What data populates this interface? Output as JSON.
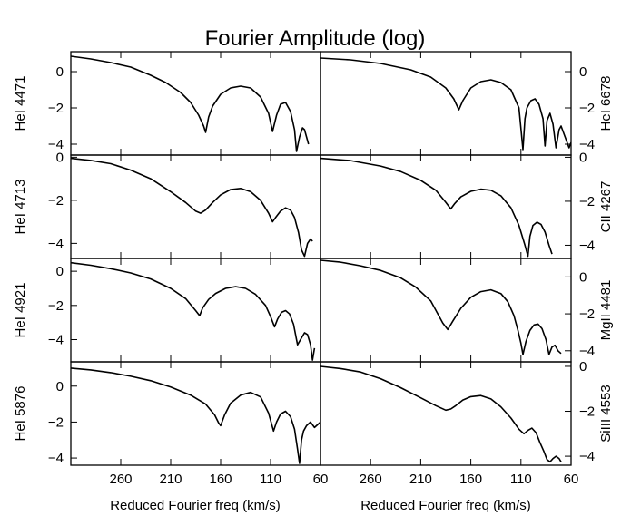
{
  "figure": {
    "title": "Fourier Amplitude (log)",
    "xlabel": "Reduced Fourier freq (km/s)",
    "line_color": "#000000",
    "background": "#ffffff"
  },
  "chart_data": [
    {
      "type": "line",
      "panel": "left-1",
      "ylabel": "HeI 4471",
      "ylabel_side": "left",
      "xlim": [
        310,
        60
      ],
      "ylim": [
        -4.6,
        1.1
      ],
      "x_reversed": true,
      "xticks": [
        260,
        210,
        160,
        110,
        60
      ],
      "xticklabels_shown": false,
      "yticks": [
        0,
        -2,
        -4
      ],
      "ytick_side": "left",
      "series": [
        {
          "values": {
            "x": [
              310,
              290,
              270,
              250,
              230,
              215,
              200,
              190,
              182,
              177,
              175,
              172,
              168,
              160,
              150,
              140,
              130,
              120,
              112,
              108,
              104,
              100,
              95,
              90,
              86,
              84,
              81,
              78,
              76,
              74,
              72
            ],
            "y": [
              0.85,
              0.7,
              0.5,
              0.25,
              -0.2,
              -0.6,
              -1.15,
              -1.7,
              -2.4,
              -3.0,
              -3.35,
              -2.5,
              -1.9,
              -1.25,
              -0.9,
              -0.8,
              -0.9,
              -1.4,
              -2.3,
              -3.3,
              -2.4,
              -1.8,
              -1.7,
              -2.2,
              -3.2,
              -4.4,
              -3.6,
              -3.1,
              -3.2,
              -3.6,
              -4.0
            ]
          }
        }
      ]
    },
    {
      "type": "line",
      "panel": "right-1",
      "ylabel": "HeI 6678",
      "ylabel_side": "right",
      "xlim": [
        310,
        60
      ],
      "ylim": [
        -4.6,
        1.1
      ],
      "x_reversed": true,
      "xticks": [
        260,
        210,
        160,
        110,
        60
      ],
      "xticklabels_shown": false,
      "yticks": [
        0,
        -2,
        -4
      ],
      "ytick_side": "right",
      "series": [
        {
          "values": {
            "x": [
              310,
              280,
              250,
              220,
              200,
              185,
              177,
              172,
              168,
              160,
              150,
              140,
              130,
              120,
              112,
              108,
              106,
              104,
              100,
              96,
              92,
              88,
              86,
              84,
              81,
              78,
              75,
              72,
              70,
              66,
              62,
              60
            ],
            "y": [
              0.75,
              0.65,
              0.45,
              0.1,
              -0.3,
              -0.9,
              -1.5,
              -2.1,
              -1.6,
              -0.9,
              -0.55,
              -0.45,
              -0.6,
              -1.0,
              -2.0,
              -4.3,
              -2.6,
              -2.0,
              -1.6,
              -1.5,
              -1.8,
              -2.6,
              -4.1,
              -2.7,
              -2.3,
              -2.9,
              -4.2,
              -3.2,
              -3.0,
              -3.6,
              -4.2,
              -3.9
            ]
          }
        }
      ]
    },
    {
      "type": "line",
      "panel": "left-2",
      "ylabel": "HeI 4713",
      "ylabel_side": "left",
      "xlim": [
        310,
        60
      ],
      "ylim": [
        -4.7,
        0.1
      ],
      "x_reversed": true,
      "xticks": [
        260,
        210,
        160,
        110,
        60
      ],
      "xticklabels_shown": false,
      "yticks": [
        0,
        -2,
        -4
      ],
      "ytick_side": "left",
      "series": [
        {
          "values": {
            "x": [
              310,
              290,
              270,
              250,
              230,
              210,
              195,
              185,
              180,
              175,
              168,
              160,
              150,
              140,
              130,
              120,
              112,
              108,
              105,
              100,
              95,
              90,
              86,
              82,
              79,
              76,
              73,
              70,
              68
            ],
            "y": [
              -0.05,
              -0.15,
              -0.3,
              -0.6,
              -1.0,
              -1.6,
              -2.1,
              -2.5,
              -2.6,
              -2.45,
              -2.1,
              -1.75,
              -1.5,
              -1.45,
              -1.6,
              -2.0,
              -2.6,
              -3.0,
              -2.8,
              -2.5,
              -2.35,
              -2.45,
              -2.8,
              -3.5,
              -4.3,
              -4.6,
              -4.0,
              -3.8,
              -3.9
            ]
          }
        }
      ]
    },
    {
      "type": "line",
      "panel": "right-2",
      "ylabel": "CII 4267",
      "ylabel_side": "right",
      "xlim": [
        310,
        60
      ],
      "ylim": [
        -4.6,
        0.1
      ],
      "x_reversed": true,
      "xticks": [
        260,
        210,
        160,
        110,
        60
      ],
      "xticklabels_shown": false,
      "yticks": [
        0,
        -2,
        -4
      ],
      "ytick_side": "right",
      "series": [
        {
          "values": {
            "x": [
              310,
              280,
              250,
              230,
              210,
              195,
              185,
              180,
              176,
              170,
              160,
              150,
              140,
              130,
              120,
              112,
              106,
              103,
              101,
              98,
              94,
              90,
              86,
              82,
              79
            ],
            "y": [
              -0.05,
              -0.15,
              -0.4,
              -0.65,
              -1.05,
              -1.5,
              -2.05,
              -2.35,
              -2.1,
              -1.8,
              -1.55,
              -1.45,
              -1.5,
              -1.75,
              -2.3,
              -3.1,
              -4.0,
              -4.5,
              -3.6,
              -3.1,
              -2.95,
              -3.05,
              -3.4,
              -4.0,
              -4.4
            ]
          }
        }
      ]
    },
    {
      "type": "line",
      "panel": "left-3",
      "ylabel": "HeI 4921",
      "ylabel_side": "left",
      "xlim": [
        310,
        60
      ],
      "ylim": [
        -5.3,
        0.75
      ],
      "x_reversed": true,
      "xticks": [
        260,
        210,
        160,
        110,
        60
      ],
      "xticklabels_shown": false,
      "yticks": [
        0,
        -2,
        -4
      ],
      "ytick_side": "left",
      "series": [
        {
          "values": {
            "x": [
              310,
              290,
              270,
              250,
              230,
              210,
              195,
              185,
              181,
              178,
              172,
              165,
              155,
              145,
              135,
              125,
              115,
              110,
              106,
              103,
              99,
              95,
              91,
              87,
              83,
              80,
              76,
              73,
              70,
              68,
              66
            ],
            "y": [
              0.5,
              0.35,
              0.15,
              -0.1,
              -0.45,
              -1.0,
              -1.6,
              -2.3,
              -2.6,
              -2.15,
              -1.65,
              -1.3,
              -1.0,
              -0.9,
              -1.0,
              -1.35,
              -2.0,
              -2.65,
              -3.25,
              -2.8,
              -2.4,
              -2.3,
              -2.5,
              -3.1,
              -4.3,
              -4.0,
              -3.6,
              -3.7,
              -4.3,
              -5.2,
              -4.5
            ]
          }
        }
      ]
    },
    {
      "type": "line",
      "panel": "right-3",
      "ylabel": "MgII 4481",
      "ylabel_side": "right",
      "xlim": [
        310,
        60
      ],
      "ylim": [
        -4.6,
        1.0
      ],
      "x_reversed": true,
      "xticks": [
        260,
        210,
        160,
        110,
        60
      ],
      "xticklabels_shown": false,
      "yticks": [
        0,
        -2,
        -4
      ],
      "ytick_side": "right",
      "series": [
        {
          "values": {
            "x": [
              310,
              290,
              270,
              250,
              230,
              215,
              200,
              188,
              183,
              178,
              170,
              160,
              150,
              140,
              130,
              123,
              117,
              113,
              110,
              108,
              105,
              101,
              97,
              93,
              89,
              85,
              82,
              79,
              76,
              73,
              70
            ],
            "y": [
              0.9,
              0.8,
              0.6,
              0.35,
              -0.05,
              -0.55,
              -1.3,
              -2.5,
              -2.85,
              -2.4,
              -1.7,
              -1.1,
              -0.8,
              -0.7,
              -0.9,
              -1.35,
              -2.1,
              -2.9,
              -3.6,
              -4.2,
              -3.5,
              -2.9,
              -2.6,
              -2.55,
              -2.8,
              -3.4,
              -4.2,
              -3.8,
              -3.7,
              -4.0,
              -4.15
            ]
          }
        }
      ]
    },
    {
      "type": "line",
      "panel": "left-4",
      "ylabel": "HeI 5876",
      "ylabel_side": "left",
      "xlim": [
        310,
        60
      ],
      "ylim": [
        -4.4,
        1.35
      ],
      "x_reversed": true,
      "xticks": [
        260,
        210,
        160,
        110,
        60
      ],
      "xticklabels_shown": true,
      "yticks": [
        0,
        -2,
        -4
      ],
      "ytick_side": "left",
      "series": [
        {
          "values": {
            "x": [
              310,
              290,
              270,
              250,
              230,
              210,
              190,
              175,
              166,
              162,
              160,
              156,
              150,
              140,
              130,
              120,
              112,
              107,
              104,
              100,
              95,
              90,
              86,
              83,
              81,
              79,
              77,
              74,
              70,
              66,
              62,
              60
            ],
            "y": [
              1.0,
              0.9,
              0.75,
              0.55,
              0.3,
              -0.05,
              -0.5,
              -1.0,
              -1.6,
              -2.05,
              -2.2,
              -1.6,
              -0.95,
              -0.5,
              -0.35,
              -0.6,
              -1.5,
              -2.5,
              -2.0,
              -1.55,
              -1.4,
              -1.7,
              -2.4,
              -3.5,
              -4.3,
              -3.0,
              -2.5,
              -2.2,
              -2.0,
              -2.3,
              -2.1,
              -2.0
            ]
          }
        }
      ]
    },
    {
      "type": "line",
      "panel": "right-4",
      "ylabel": "SiIII 4553",
      "ylabel_side": "right",
      "xlim": [
        310,
        60
      ],
      "ylim": [
        -4.4,
        0.2
      ],
      "x_reversed": true,
      "xticks": [
        260,
        210,
        160,
        110,
        60
      ],
      "xticklabels_shown": true,
      "yticks": [
        0,
        -2,
        -4
      ],
      "ytick_side": "right",
      "series": [
        {
          "values": {
            "x": [
              310,
              290,
              270,
              250,
              230,
              210,
              195,
              185,
              180,
              175,
              168,
              160,
              150,
              140,
              130,
              120,
              112,
              107,
              103,
              99,
              95,
              91,
              87,
              84,
              81,
              78,
              75,
              72,
              70
            ],
            "y": [
              0.0,
              -0.1,
              -0.25,
              -0.55,
              -0.95,
              -1.4,
              -1.75,
              -1.95,
              -1.9,
              -1.75,
              -1.5,
              -1.35,
              -1.3,
              -1.45,
              -1.8,
              -2.3,
              -2.8,
              -3.0,
              -2.85,
              -2.75,
              -2.95,
              -3.4,
              -3.8,
              -4.15,
              -4.25,
              -4.1,
              -4.0,
              -4.1,
              -4.25
            ]
          }
        }
      ]
    }
  ]
}
